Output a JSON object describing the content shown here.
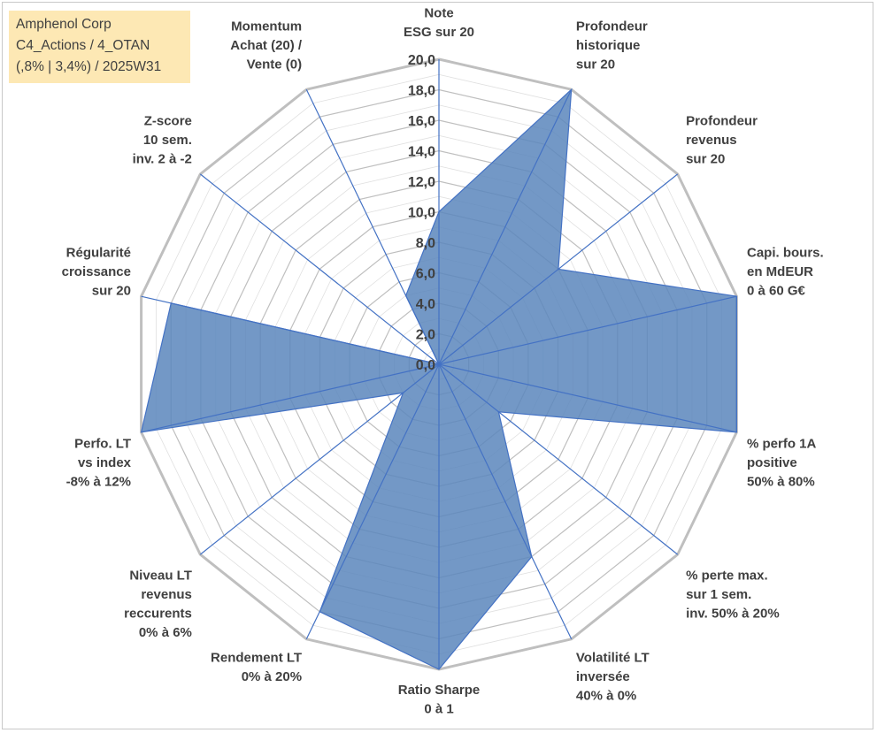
{
  "title_box": {
    "line1": "Amphenol Corp",
    "line2": "C4_Actions / 4_OTAN",
    "line3": "(,8% | 3,4%) / 2025W31"
  },
  "colors": {
    "title_box_bg": "#fde8b4",
    "area_fill": "#5a86bc",
    "area_stroke": "#4472c4",
    "spoke": "#4472c4",
    "grid_major": "#bfbfbf",
    "grid_minor": "#e0e0e0",
    "text": "#404040"
  },
  "chart_data": {
    "type": "radar",
    "rmin": 0,
    "rmax": 20,
    "tick_step": 2,
    "minor_step": 1,
    "tick_labels": [
      "0,0",
      "2,0",
      "4,0",
      "6,0",
      "8,0",
      "10,0",
      "12,0",
      "14,0",
      "16,0",
      "18,0",
      "20,0"
    ],
    "axes": [
      {
        "label": [
          "Note",
          "ESG sur 20"
        ],
        "value": 10
      },
      {
        "label": [
          "Profondeur",
          "historique",
          "sur 20"
        ],
        "value": 20
      },
      {
        "label": [
          "Profondeur",
          "revenus",
          "sur 20"
        ],
        "value": 10
      },
      {
        "label": [
          "Capi. bours.",
          "en MdEUR",
          "0 à 60 G€"
        ],
        "value": 20
      },
      {
        "label": [
          "% perfo 1A",
          "positive",
          "50% à 80%"
        ],
        "value": 20
      },
      {
        "label": [
          "% perte max.",
          "sur 1 sem.",
          "inv. 50% à 20%"
        ],
        "value": 5
      },
      {
        "label": [
          "Volatilité LT",
          "inversée",
          "40% à 0%"
        ],
        "value": 14
      },
      {
        "label": [
          "Ratio Sharpe",
          "0 à 1"
        ],
        "value": 20
      },
      {
        "label": [
          "Rendement LT",
          "0% à 20%"
        ],
        "value": 18
      },
      {
        "label": [
          "Niveau LT",
          "revenus",
          "reccurents",
          "0% à 6%"
        ],
        "value": 3
      },
      {
        "label": [
          "Perfo. LT",
          "vs index",
          "-8% à 12%"
        ],
        "value": 20
      },
      {
        "label": [
          "Régularité",
          "croissance",
          "sur 20"
        ],
        "value": 18
      },
      {
        "label": [
          "Z-score",
          "10 sem.",
          "inv. 2 à -2"
        ],
        "value": 0
      },
      {
        "label": [
          "Momentum",
          "Achat (20) /",
          "Vente (0)"
        ],
        "value": 5
      }
    ]
  }
}
